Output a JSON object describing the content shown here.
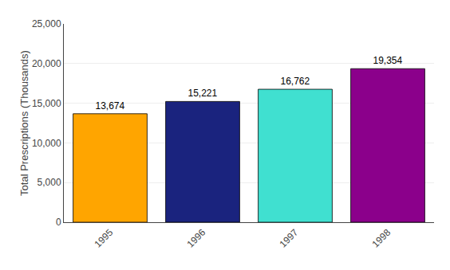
{
  "chart_data": {
    "type": "bar",
    "categories": [
      "1995",
      "1996",
      "1997",
      "1998"
    ],
    "values": [
      13674,
      15221,
      16762,
      19354
    ],
    "value_labels": [
      "13,674",
      "15,221",
      "16,762",
      "19,354"
    ],
    "colors": [
      "#FFA500",
      "#1A237E",
      "#40E0D0",
      "#8B008B"
    ],
    "ylabel": "Total Prescriptions (Thousands)",
    "ylim": [
      0,
      25000
    ],
    "yticks": [
      0,
      {
        "value": 5000,
        "label": "5,000"
      },
      {
        "value": 10000,
        "label": "10,000"
      },
      {
        "value": 15000,
        "label": "15,000"
      },
      {
        "value": 20000,
        "label": "20,000"
      },
      {
        "value": 25000,
        "label": "25,000"
      }
    ],
    "grid": true,
    "data_labels": true
  }
}
